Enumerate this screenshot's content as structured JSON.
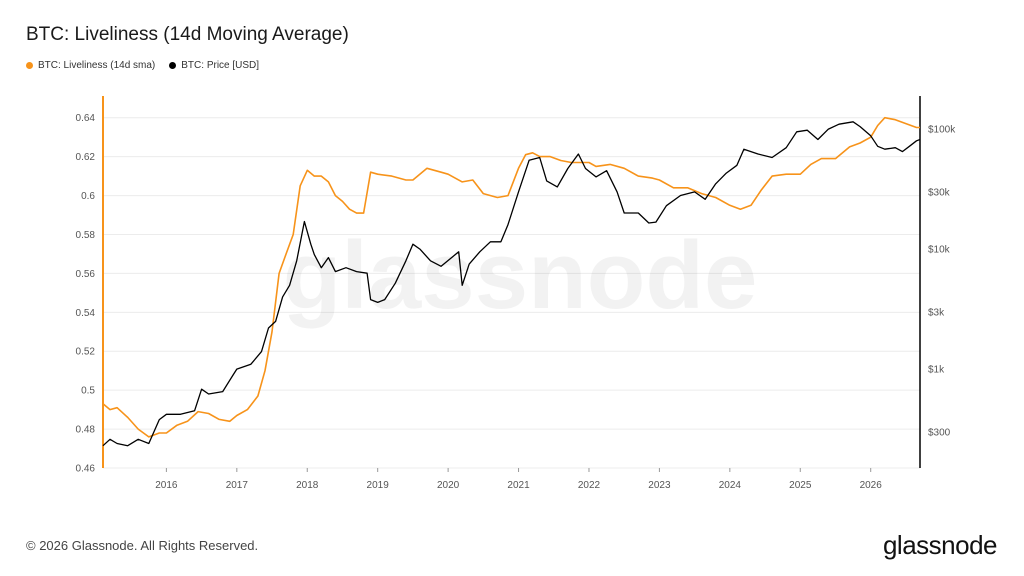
{
  "title": "BTC: Liveliness (14d Moving Average)",
  "footer": "© 2026 Glassnode. All Rights Reserved.",
  "brand": "glassnode",
  "watermark": "glassnode",
  "colors": {
    "liveliness": "#F7931A",
    "price": "#000000",
    "grid": "#ececec"
  },
  "chart_data": {
    "type": "line",
    "legend_position": "top-left",
    "grid": true,
    "x_ticks": [
      "2016",
      "2017",
      "2018",
      "2019",
      "2020",
      "2021",
      "2022",
      "2023",
      "2024",
      "2025",
      "2026"
    ],
    "x_range": [
      2015.1,
      2026.7
    ],
    "y_left": {
      "ticks": [
        "0.64",
        "0.62",
        "0.6",
        "0.58",
        "0.56",
        "0.54",
        "0.52",
        "0.5",
        "0.48",
        "0.46"
      ],
      "range": [
        0.46,
        0.645
      ]
    },
    "y_right": {
      "scale": "log",
      "ticks": [
        "$100k",
        "$30k",
        "$10k",
        "$3k",
        "$1k",
        "$300"
      ],
      "tick_values": [
        100000,
        30000,
        10000,
        3000,
        1000,
        300
      ],
      "range": [
        150,
        150000
      ]
    },
    "series": [
      {
        "name": "BTC: Liveliness (14d sma)",
        "axis": "left",
        "color": "#F7931A",
        "points": [
          [
            2015.1,
            0.493
          ],
          [
            2015.2,
            0.49
          ],
          [
            2015.3,
            0.491
          ],
          [
            2015.45,
            0.486
          ],
          [
            2015.6,
            0.48
          ],
          [
            2015.75,
            0.476
          ],
          [
            2015.9,
            0.478
          ],
          [
            2016.0,
            0.478
          ],
          [
            2016.15,
            0.482
          ],
          [
            2016.3,
            0.484
          ],
          [
            2016.45,
            0.489
          ],
          [
            2016.6,
            0.488
          ],
          [
            2016.75,
            0.485
          ],
          [
            2016.9,
            0.484
          ],
          [
            2017.0,
            0.487
          ],
          [
            2017.15,
            0.49
          ],
          [
            2017.3,
            0.497
          ],
          [
            2017.4,
            0.51
          ],
          [
            2017.5,
            0.53
          ],
          [
            2017.6,
            0.56
          ],
          [
            2017.7,
            0.57
          ],
          [
            2017.8,
            0.58
          ],
          [
            2017.9,
            0.605
          ],
          [
            2018.0,
            0.613
          ],
          [
            2018.1,
            0.61
          ],
          [
            2018.2,
            0.61
          ],
          [
            2018.3,
            0.607
          ],
          [
            2018.4,
            0.6
          ],
          [
            2018.5,
            0.597
          ],
          [
            2018.6,
            0.593
          ],
          [
            2018.7,
            0.591
          ],
          [
            2018.8,
            0.591
          ],
          [
            2018.9,
            0.612
          ],
          [
            2019.0,
            0.611
          ],
          [
            2019.2,
            0.61
          ],
          [
            2019.4,
            0.608
          ],
          [
            2019.5,
            0.608
          ],
          [
            2019.7,
            0.614
          ],
          [
            2019.9,
            0.612
          ],
          [
            2020.0,
            0.611
          ],
          [
            2020.2,
            0.607
          ],
          [
            2020.35,
            0.608
          ],
          [
            2020.5,
            0.601
          ],
          [
            2020.7,
            0.599
          ],
          [
            2020.85,
            0.6
          ],
          [
            2021.0,
            0.614
          ],
          [
            2021.1,
            0.621
          ],
          [
            2021.2,
            0.622
          ],
          [
            2021.3,
            0.62
          ],
          [
            2021.45,
            0.62
          ],
          [
            2021.6,
            0.618
          ],
          [
            2021.75,
            0.617
          ],
          [
            2021.9,
            0.617
          ],
          [
            2022.0,
            0.617
          ],
          [
            2022.1,
            0.615
          ],
          [
            2022.3,
            0.616
          ],
          [
            2022.5,
            0.614
          ],
          [
            2022.7,
            0.61
          ],
          [
            2022.9,
            0.609
          ],
          [
            2023.0,
            0.608
          ],
          [
            2023.2,
            0.604
          ],
          [
            2023.4,
            0.604
          ],
          [
            2023.6,
            0.601
          ],
          [
            2023.8,
            0.599
          ],
          [
            2024.0,
            0.595
          ],
          [
            2024.15,
            0.593
          ],
          [
            2024.3,
            0.595
          ],
          [
            2024.45,
            0.603
          ],
          [
            2024.6,
            0.61
          ],
          [
            2024.8,
            0.611
          ],
          [
            2025.0,
            0.611
          ],
          [
            2025.15,
            0.616
          ],
          [
            2025.3,
            0.619
          ],
          [
            2025.5,
            0.619
          ],
          [
            2025.7,
            0.625
          ],
          [
            2025.85,
            0.627
          ],
          [
            2026.0,
            0.63
          ],
          [
            2026.1,
            0.636
          ],
          [
            2026.2,
            0.64
          ],
          [
            2026.35,
            0.639
          ],
          [
            2026.5,
            0.637
          ],
          [
            2026.65,
            0.635
          ],
          [
            2026.7,
            0.635
          ]
        ]
      },
      {
        "name": "BTC: Price [USD]",
        "axis": "right",
        "color": "#000000",
        "points": [
          [
            2015.1,
            230
          ],
          [
            2015.2,
            260
          ],
          [
            2015.3,
            240
          ],
          [
            2015.45,
            230
          ],
          [
            2015.6,
            260
          ],
          [
            2015.75,
            240
          ],
          [
            2015.9,
            380
          ],
          [
            2016.0,
            420
          ],
          [
            2016.2,
            420
          ],
          [
            2016.4,
            450
          ],
          [
            2016.5,
            680
          ],
          [
            2016.6,
            620
          ],
          [
            2016.8,
            650
          ],
          [
            2016.95,
            900
          ],
          [
            2017.0,
            1000
          ],
          [
            2017.2,
            1100
          ],
          [
            2017.35,
            1400
          ],
          [
            2017.45,
            2200
          ],
          [
            2017.55,
            2500
          ],
          [
            2017.65,
            4000
          ],
          [
            2017.75,
            5000
          ],
          [
            2017.85,
            8000
          ],
          [
            2017.96,
            17000
          ],
          [
            2018.05,
            11000
          ],
          [
            2018.1,
            9000
          ],
          [
            2018.2,
            7000
          ],
          [
            2018.3,
            8500
          ],
          [
            2018.4,
            6500
          ],
          [
            2018.55,
            7000
          ],
          [
            2018.7,
            6500
          ],
          [
            2018.85,
            6300
          ],
          [
            2018.9,
            3800
          ],
          [
            2019.0,
            3600
          ],
          [
            2019.1,
            3800
          ],
          [
            2019.25,
            5200
          ],
          [
            2019.4,
            8000
          ],
          [
            2019.5,
            11000
          ],
          [
            2019.6,
            10000
          ],
          [
            2019.75,
            8000
          ],
          [
            2019.9,
            7200
          ],
          [
            2020.05,
            8500
          ],
          [
            2020.15,
            9500
          ],
          [
            2020.2,
            5000
          ],
          [
            2020.3,
            7500
          ],
          [
            2020.45,
            9500
          ],
          [
            2020.6,
            11500
          ],
          [
            2020.75,
            11500
          ],
          [
            2020.85,
            16000
          ],
          [
            2021.0,
            30000
          ],
          [
            2021.15,
            55000
          ],
          [
            2021.3,
            58000
          ],
          [
            2021.4,
            37000
          ],
          [
            2021.55,
            33000
          ],
          [
            2021.7,
            47000
          ],
          [
            2021.85,
            62000
          ],
          [
            2021.95,
            47000
          ],
          [
            2022.1,
            40000
          ],
          [
            2022.25,
            45000
          ],
          [
            2022.4,
            30000
          ],
          [
            2022.5,
            20000
          ],
          [
            2022.7,
            20000
          ],
          [
            2022.85,
            16500
          ],
          [
            2022.95,
            16800
          ],
          [
            2023.1,
            23000
          ],
          [
            2023.3,
            28000
          ],
          [
            2023.5,
            30000
          ],
          [
            2023.65,
            26000
          ],
          [
            2023.8,
            35000
          ],
          [
            2023.95,
            43000
          ],
          [
            2024.1,
            50000
          ],
          [
            2024.2,
            68000
          ],
          [
            2024.4,
            62000
          ],
          [
            2024.6,
            58000
          ],
          [
            2024.8,
            70000
          ],
          [
            2024.95,
            95000
          ],
          [
            2025.1,
            98000
          ],
          [
            2025.25,
            82000
          ],
          [
            2025.4,
            100000
          ],
          [
            2025.55,
            110000
          ],
          [
            2025.75,
            115000
          ],
          [
            2025.85,
            105000
          ],
          [
            2026.0,
            88000
          ],
          [
            2026.1,
            72000
          ],
          [
            2026.2,
            68000
          ],
          [
            2026.35,
            70000
          ],
          [
            2026.45,
            65000
          ],
          [
            2026.55,
            72000
          ],
          [
            2026.65,
            80000
          ],
          [
            2026.7,
            82000
          ]
        ]
      }
    ]
  }
}
